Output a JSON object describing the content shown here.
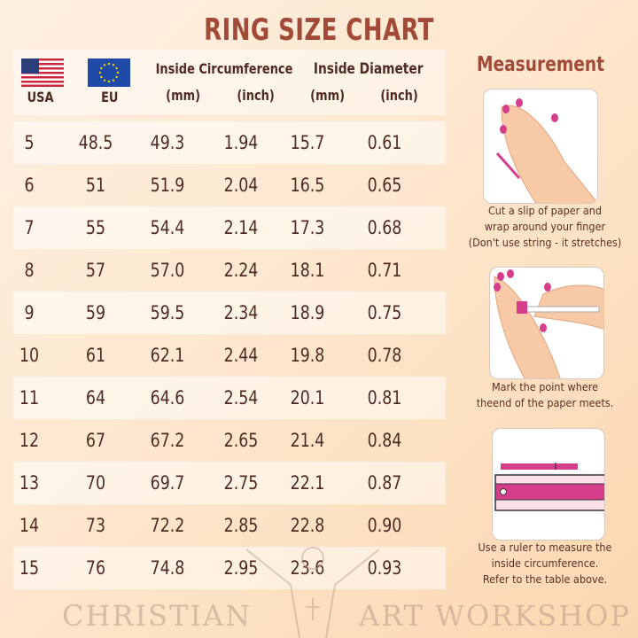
{
  "title": "RING SIZE CHART",
  "header": {
    "usa": "USA",
    "eu": "EU",
    "circumference": "Inside Circumference",
    "diameter": "Inside Diameter",
    "mm1": "(mm)",
    "inch1": "(inch)",
    "mm2": "(mm)",
    "inch2": "(inch)"
  },
  "rows": [
    [
      "5",
      "48.5",
      "49.3",
      "1.94",
      "15.7",
      "0.61"
    ],
    [
      "6",
      "51",
      "51.9",
      "2.04",
      "16.5",
      "0.65"
    ],
    [
      "7",
      "55",
      "54.4",
      "2.14",
      "17.3",
      "0.68"
    ],
    [
      "8",
      "57",
      "57.0",
      "2.24",
      "18.1",
      "0.71"
    ],
    [
      "9",
      "59",
      "59.5",
      "2.34",
      "18.9",
      "0.75"
    ],
    [
      "10",
      "61",
      "62.1",
      "2.44",
      "19.8",
      "0.78"
    ],
    [
      "11",
      "64",
      "64.6",
      "2.54",
      "20.1",
      "0.81"
    ],
    [
      "12",
      "67",
      "67.2",
      "2.65",
      "21.4",
      "0.84"
    ],
    [
      "13",
      "70",
      "69.7",
      "2.75",
      "22.1",
      "0.87"
    ],
    [
      "14",
      "73",
      "72.2",
      "2.85",
      "22.8",
      "0.90"
    ],
    [
      "15",
      "76",
      "74.8",
      "2.95",
      "23.6",
      "0.93"
    ]
  ],
  "measurement": {
    "title": "Measurement",
    "steps": [
      {
        "lines": [
          "Cut a slip of paper and",
          "wrap around your finger",
          "(Don't use string - it stretches)"
        ]
      },
      {
        "lines": [
          "Mark the point where",
          "theend of the paper meets."
        ]
      },
      {
        "lines": [
          "Use a ruler to measure the",
          "inside circumference.",
          "Refer to the table above."
        ]
      }
    ]
  },
  "watermark": {
    "left": "CHRISTIAN",
    "right": "ART WORKSHOP"
  },
  "colors": {
    "title": "#a24a38",
    "text": "#4e2a22",
    "accent": "#d63e8c"
  }
}
